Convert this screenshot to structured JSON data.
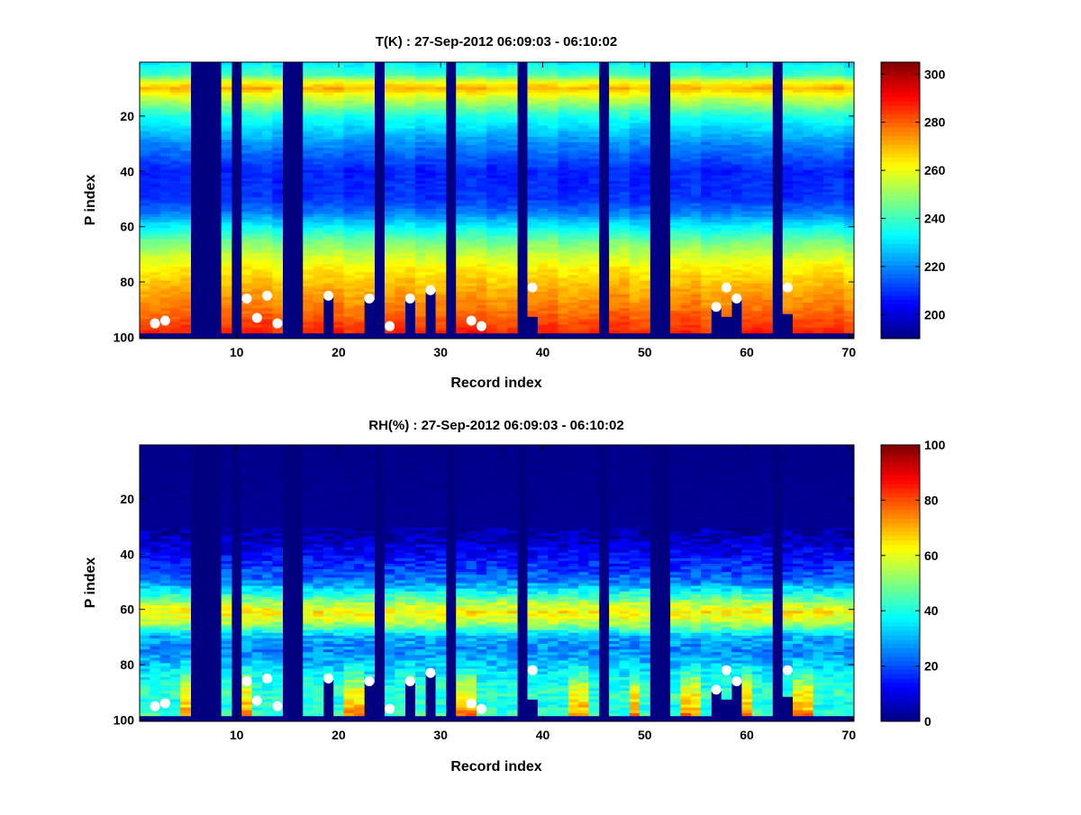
{
  "figure": {
    "background": "#ffffff"
  },
  "chart_data": [
    {
      "type": "heatmap",
      "title": "T(K) : 27-Sep-2012 06:09:03 - 06:10:02",
      "xlabel": "Record index",
      "ylabel": "P index",
      "xlim": [
        0.5,
        70.5
      ],
      "ylim": [
        0.5,
        100.5
      ],
      "y_reversed": true,
      "xticks": [
        10,
        20,
        30,
        40,
        50,
        60,
        70
      ],
      "yticks": [
        20,
        40,
        60,
        80,
        100
      ],
      "colormap": "jet",
      "clim": [
        190,
        305
      ],
      "colorbar_ticks": [
        200,
        220,
        240,
        260,
        280,
        300
      ],
      "empty_records": [
        6,
        7,
        8,
        10,
        15,
        16,
        24,
        31,
        38,
        46,
        51,
        52,
        63
      ],
      "surface_level": [
        98,
        98,
        98,
        98,
        98,
        0,
        0,
        0,
        98,
        0,
        98,
        98,
        98,
        98,
        0,
        0,
        98,
        98,
        85,
        98,
        98,
        98,
        86,
        0,
        98,
        98,
        86,
        98,
        83,
        98,
        0,
        98,
        98,
        98,
        98,
        98,
        98,
        0,
        92,
        98,
        98,
        98,
        98,
        98,
        98,
        0,
        98,
        98,
        98,
        98,
        0,
        0,
        98,
        98,
        98,
        98,
        89,
        92,
        86,
        98,
        98,
        98,
        0,
        91,
        98,
        98,
        98,
        98,
        98,
        98
      ],
      "profile_p": [
        1,
        5,
        8,
        10,
        13,
        20,
        30,
        40,
        50,
        55,
        60,
        65,
        70,
        75,
        80,
        85,
        90,
        95,
        100
      ],
      "profile_value": [
        232,
        240,
        262,
        270,
        258,
        236,
        220,
        208,
        210,
        218,
        232,
        245,
        255,
        263,
        268,
        273,
        277,
        283,
        288
      ],
      "markers": [
        {
          "x": 2,
          "y": 95
        },
        {
          "x": 3,
          "y": 94
        },
        {
          "x": 11,
          "y": 86
        },
        {
          "x": 12,
          "y": 93
        },
        {
          "x": 13,
          "y": 85
        },
        {
          "x": 14,
          "y": 95
        },
        {
          "x": 19,
          "y": 85
        },
        {
          "x": 23,
          "y": 86
        },
        {
          "x": 25,
          "y": 96
        },
        {
          "x": 27,
          "y": 86
        },
        {
          "x": 29,
          "y": 83
        },
        {
          "x": 33,
          "y": 94
        },
        {
          "x": 34,
          "y": 96
        },
        {
          "x": 39,
          "y": 82
        },
        {
          "x": 57,
          "y": 89
        },
        {
          "x": 58,
          "y": 82
        },
        {
          "x": 59,
          "y": 86
        },
        {
          "x": 64,
          "y": 82
        }
      ]
    },
    {
      "type": "heatmap",
      "title": "RH(%) : 27-Sep-2012 06:09:03 - 06:10:02",
      "xlabel": "Record index",
      "ylabel": "P index",
      "xlim": [
        0.5,
        70.5
      ],
      "ylim": [
        0.5,
        100.5
      ],
      "y_reversed": true,
      "xticks": [
        10,
        20,
        30,
        40,
        50,
        60,
        70
      ],
      "yticks": [
        20,
        40,
        60,
        80,
        100
      ],
      "colormap": "jet",
      "clim": [
        0,
        100
      ],
      "colorbar_ticks": [
        0,
        20,
        40,
        60,
        80,
        100
      ],
      "empty_records": [
        6,
        7,
        8,
        10,
        15,
        16,
        24,
        31,
        38,
        46,
        51,
        52,
        63
      ],
      "surface_level": [
        98,
        98,
        98,
        98,
        98,
        0,
        0,
        0,
        98,
        0,
        98,
        98,
        98,
        98,
        0,
        0,
        98,
        98,
        85,
        98,
        98,
        98,
        86,
        0,
        98,
        98,
        86,
        98,
        83,
        98,
        0,
        98,
        98,
        98,
        98,
        98,
        98,
        0,
        92,
        98,
        98,
        98,
        98,
        98,
        98,
        0,
        98,
        98,
        98,
        98,
        0,
        0,
        98,
        98,
        98,
        98,
        89,
        92,
        86,
        98,
        98,
        98,
        0,
        91,
        98,
        98,
        98,
        98,
        98,
        98
      ],
      "profile_p": [
        1,
        30,
        35,
        40,
        45,
        50,
        55,
        58,
        61,
        64,
        67,
        70,
        75,
        80,
        85,
        90,
        95,
        100
      ],
      "profile_value": [
        1,
        2,
        6,
        12,
        18,
        25,
        42,
        55,
        64,
        58,
        45,
        30,
        26,
        32,
        38,
        42,
        40,
        45
      ],
      "markers": [
        {
          "x": 2,
          "y": 95
        },
        {
          "x": 3,
          "y": 94
        },
        {
          "x": 11,
          "y": 86
        },
        {
          "x": 12,
          "y": 93
        },
        {
          "x": 13,
          "y": 85
        },
        {
          "x": 14,
          "y": 95
        },
        {
          "x": 19,
          "y": 85
        },
        {
          "x": 23,
          "y": 86
        },
        {
          "x": 25,
          "y": 96
        },
        {
          "x": 27,
          "y": 86
        },
        {
          "x": 29,
          "y": 83
        },
        {
          "x": 33,
          "y": 94
        },
        {
          "x": 34,
          "y": 96
        },
        {
          "x": 39,
          "y": 82
        },
        {
          "x": 57,
          "y": 89
        },
        {
          "x": 58,
          "y": 82
        },
        {
          "x": 59,
          "y": 86
        },
        {
          "x": 64,
          "y": 82
        }
      ]
    }
  ]
}
